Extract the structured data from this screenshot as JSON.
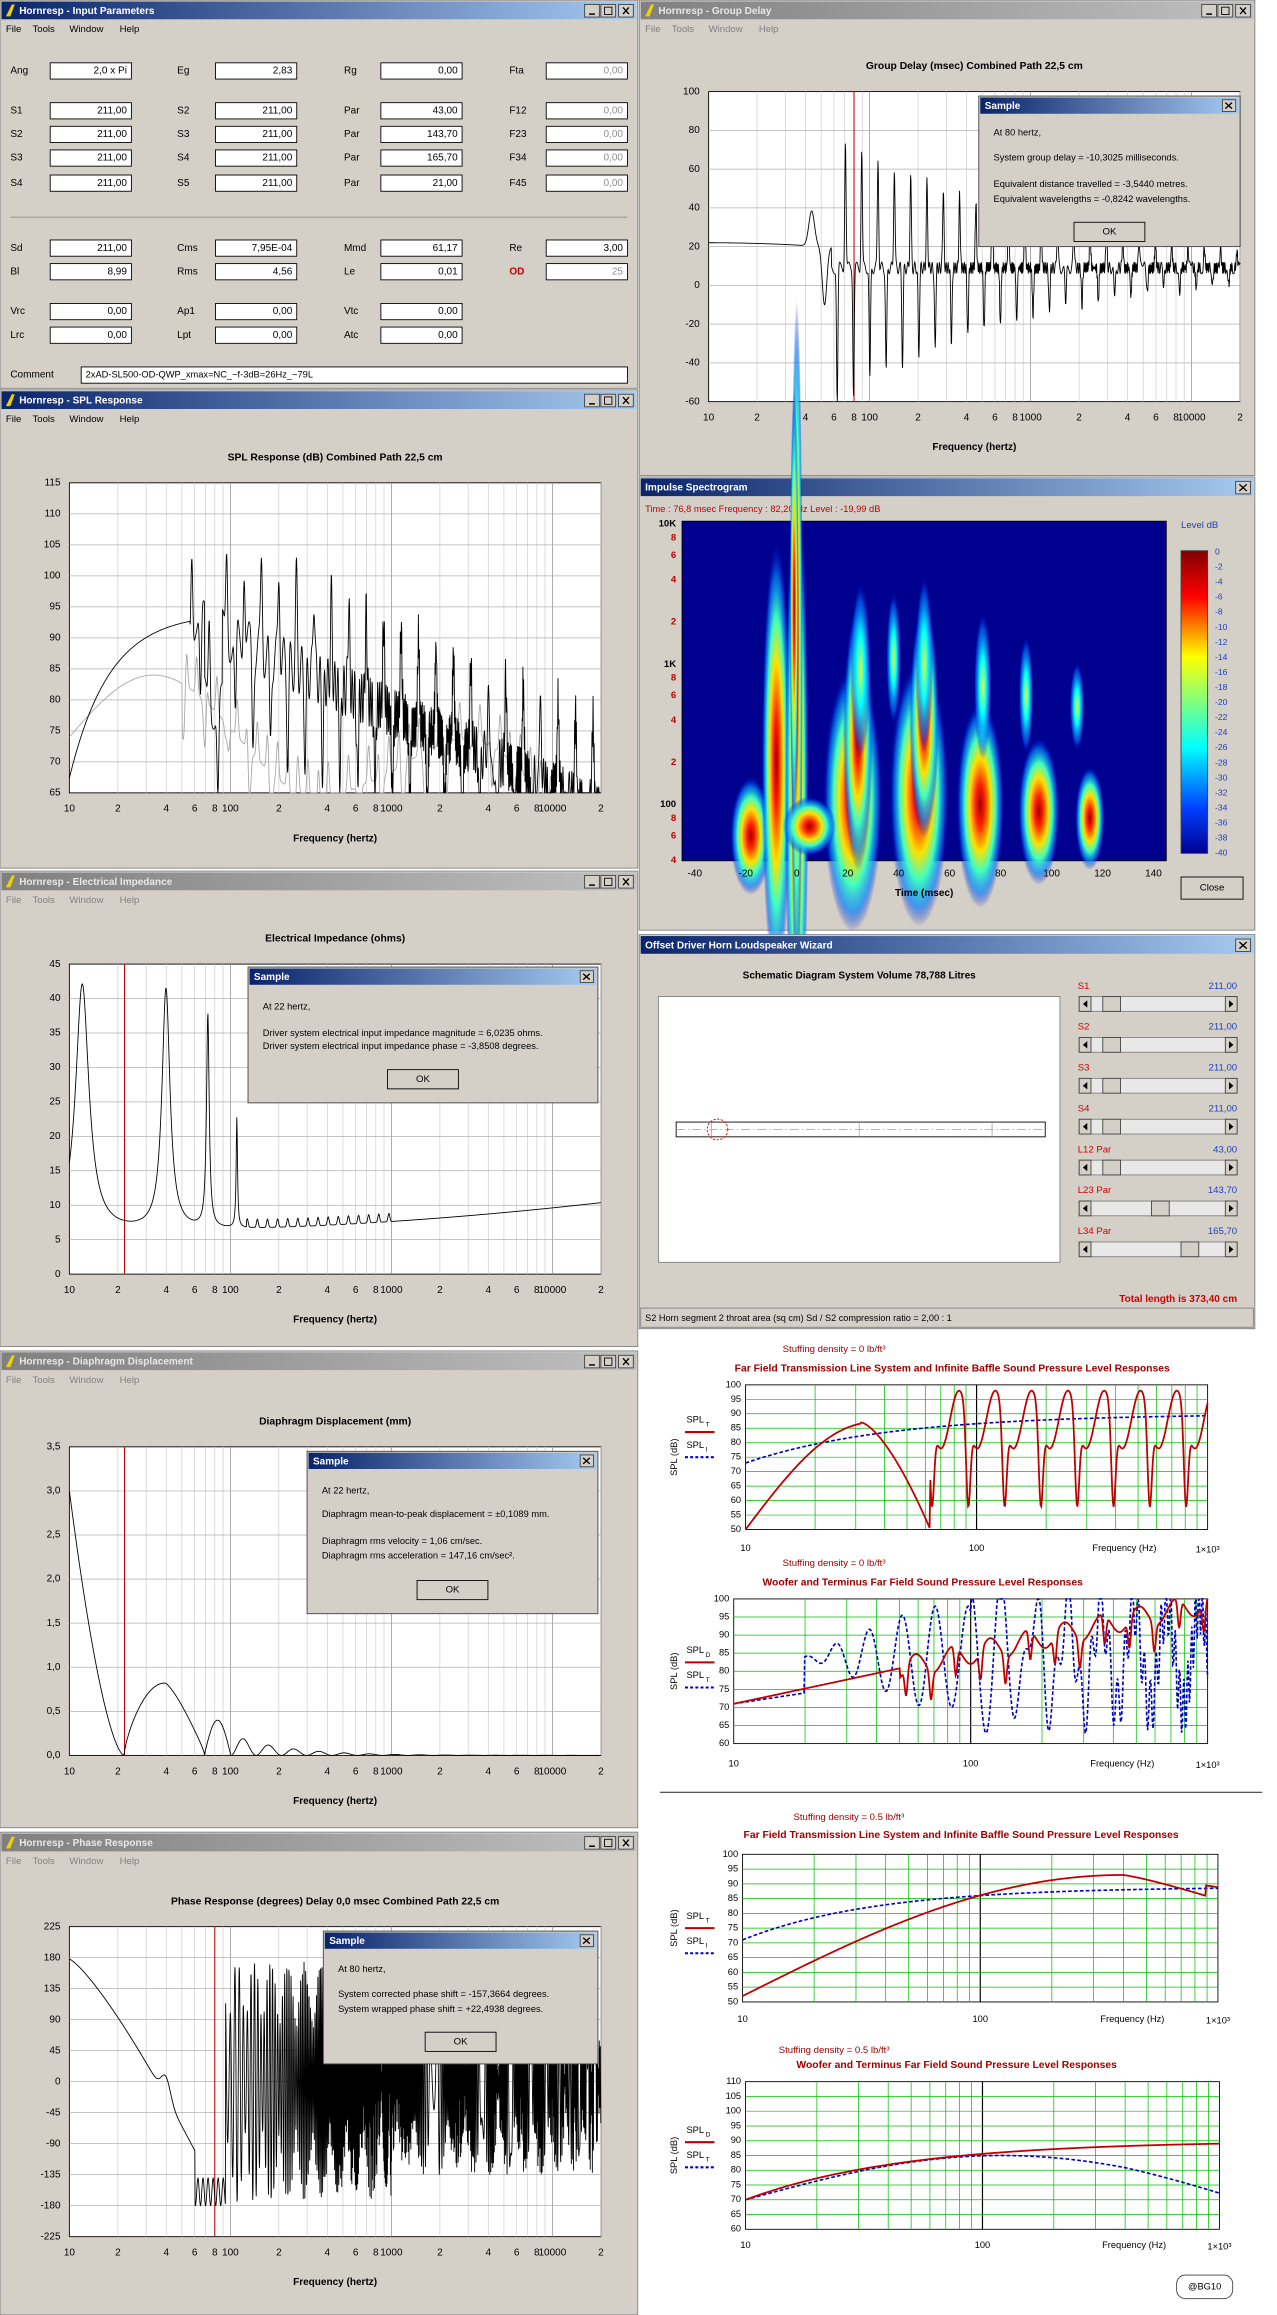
{
  "input_parameters": {
    "title": "Hornresp - Input Parameters",
    "menu": [
      "File",
      "Tools",
      "Window",
      "Help"
    ],
    "rows": [
      [
        [
          "Ang",
          "2,0 x Pi"
        ],
        [
          "Eg",
          "2,83"
        ],
        [
          "Rg",
          "0,00"
        ],
        [
          "Fta",
          "0,00"
        ]
      ],
      [
        [
          "S1",
          "211,00"
        ],
        [
          "S2",
          "211,00"
        ],
        [
          "Par",
          "43,00"
        ],
        [
          "F12",
          "0,00"
        ]
      ],
      [
        [
          "S2",
          "211,00"
        ],
        [
          "S3",
          "211,00"
        ],
        [
          "Par",
          "143,70"
        ],
        [
          "F23",
          "0,00"
        ]
      ],
      [
        [
          "S3",
          "211,00"
        ],
        [
          "S4",
          "211,00"
        ],
        [
          "Par",
          "165,70"
        ],
        [
          "F34",
          "0,00"
        ]
      ],
      [
        [
          "S4",
          "211,00"
        ],
        [
          "S5",
          "211,00"
        ],
        [
          "Par",
          "21,00"
        ],
        [
          "F45",
          "0,00"
        ]
      ],
      [
        [
          "Sd",
          "211,00"
        ],
        [
          "Cms",
          "7,95E-04"
        ],
        [
          "Mmd",
          "61,17"
        ],
        [
          "Re",
          "3,00"
        ]
      ],
      [
        [
          "Bl",
          "8,99"
        ],
        [
          "Rms",
          "4,56"
        ],
        [
          "Le",
          "0,01"
        ],
        [
          "OD",
          "25"
        ]
      ],
      [
        [
          "Vrc",
          "0,00"
        ],
        [
          "Ap1",
          "0,00"
        ],
        [
          "Vtc",
          "0,00"
        ]
      ],
      [
        [
          "Lrc",
          "0,00"
        ],
        [
          "Lpt",
          "0,00"
        ],
        [
          "Atc",
          "0,00"
        ]
      ]
    ],
    "comment_label": "Comment",
    "comment": "2xAD-SL500-OD-QWP_xmax=NC_~f-3dB=26Hz_~79L"
  },
  "group_delay": {
    "title": "Hornresp - Group Delay",
    "menu": [
      "File",
      "Tools",
      "Window",
      "Help"
    ],
    "chart": {
      "title": "Group Delay (msec)   Combined   Path 22,5 cm",
      "yticks": [
        "100",
        "80",
        "60",
        "40",
        "20",
        "0",
        "-20",
        "-40",
        "-60"
      ],
      "xticks": [
        "10",
        "2",
        "4",
        "6",
        "8",
        "100",
        "2",
        "4",
        "6",
        "8",
        "1000",
        "2",
        "4",
        "6",
        "8",
        "10000",
        "2"
      ],
      "xlabel": "Frequency (hertz)"
    },
    "dialog": {
      "title": "Sample",
      "lines": [
        "At 80 hertz,",
        "System group delay = -10,3025 milliseconds.",
        "Equivalent distance travelled = -3,5440 metres.",
        "Equivalent wavelengths = -0,8242 wavelengths."
      ],
      "button": "OK"
    }
  },
  "spl_response": {
    "title": "Hornresp - SPL Response",
    "menu": [
      "File",
      "Tools",
      "Window",
      "Help"
    ],
    "chart": {
      "title": "SPL Response (dB)   Combined   Path 22,5 cm",
      "yticks": [
        "115",
        "110",
        "105",
        "100",
        "95",
        "90",
        "85",
        "80",
        "75",
        "70",
        "65"
      ],
      "xticks": [
        "10",
        "2",
        "4",
        "6",
        "8",
        "100",
        "2",
        "4",
        "6",
        "8",
        "1000",
        "2",
        "4",
        "6",
        "8",
        "10000",
        "2"
      ],
      "xlabel": "Frequency (hertz)"
    }
  },
  "impulse_spectrogram": {
    "title": "Impulse Spectrogram",
    "info": "Time : 76,8 msec     Frequency : 82,20 Hz     Level : -19,99 dB",
    "yticks": [
      "10K",
      "8",
      "6",
      "4",
      "2",
      "1K",
      "8",
      "6",
      "4",
      "2",
      "100",
      "8",
      "6",
      "4"
    ],
    "xticks": [
      "-40",
      "-20",
      "0",
      "20",
      "40",
      "60",
      "80",
      "100",
      "120",
      "140"
    ],
    "xlabel": "Time (msec)",
    "legend_title": "Level   dB",
    "legend_ticks": [
      "0",
      "-2",
      "-4",
      "-6",
      "-8",
      "-10",
      "-12",
      "-14",
      "-16",
      "-18",
      "-20",
      "-22",
      "-24",
      "-26",
      "-28",
      "-30",
      "-32",
      "-34",
      "-36",
      "-38",
      "-40"
    ],
    "button": "Close"
  },
  "electrical_impedance": {
    "title": "Hornresp - Electrical Impedance",
    "menu": [
      "File",
      "Tools",
      "Window",
      "Help"
    ],
    "chart": {
      "title": "Electrical Impedance (ohms)",
      "yticks": [
        "45",
        "40",
        "35",
        "30",
        "25",
        "20",
        "15",
        "10",
        "5",
        "0"
      ],
      "xticks": [
        "10",
        "2",
        "4",
        "6",
        "8",
        "100",
        "2",
        "4",
        "6",
        "8",
        "1000",
        "2",
        "4",
        "6",
        "8",
        "10000",
        "2"
      ],
      "xlabel": "Frequency (hertz)"
    },
    "dialog": {
      "title": "Sample",
      "lines": [
        "At 22 hertz,",
        "Driver system electrical input impedance magnitude = 6,0235 ohms.",
        "Driver system electrical input impedance phase = -3,8508 degrees."
      ],
      "button": "OK"
    }
  },
  "wizard": {
    "title": "Offset Driver Horn Loudspeaker Wizard",
    "heading": "Schematic Diagram    System Volume 78,788 Litres",
    "params": [
      [
        "S1",
        "211,00"
      ],
      [
        "S2",
        "211,00"
      ],
      [
        "S3",
        "211,00"
      ],
      [
        "S4",
        "211,00"
      ],
      [
        "L12  Par",
        "43,00"
      ],
      [
        "L23  Par",
        "143,70"
      ],
      [
        "L34  Par",
        "165,70"
      ]
    ],
    "total": "Total length is 373,40 cm",
    "status": "S2    Horn segment 2 throat area  (sq cm)    Sd / S2 compression ratio = 2,00 : 1"
  },
  "diaphragm_displacement": {
    "title": "Hornresp - Diaphragm Displacement",
    "menu": [
      "File",
      "Tools",
      "Window",
      "Help"
    ],
    "chart": {
      "title": "Diaphragm Displacement (mm)",
      "yticks": [
        "3,5",
        "3,0",
        "2,5",
        "2,0",
        "1,5",
        "1,0",
        "0,5",
        "0,0"
      ],
      "xticks": [
        "10",
        "2",
        "4",
        "6",
        "8",
        "100",
        "2",
        "4",
        "6",
        "8",
        "1000",
        "2",
        "4",
        "6",
        "8",
        "10000",
        "2"
      ],
      "xlabel": "Frequency (hertz)"
    },
    "dialog": {
      "title": "Sample",
      "lines": [
        "At 22 hertz,",
        "Diaphragm mean-to-peak displacement = ±0,1089 mm.",
        "Diaphragm rms velocity = 1,06 cm/sec.",
        "Diaphragm rms acceleration = 147,16 cm/sec²."
      ],
      "button": "OK"
    }
  },
  "phase_response": {
    "title": "Hornresp - Phase Response",
    "menu": [
      "File",
      "Tools",
      "Window",
      "Help"
    ],
    "chart": {
      "title": "Phase Response (degrees)   Delay 0,0 msec   Combined   Path 22,5 cm",
      "yticks": [
        "225",
        "180",
        "135",
        "90",
        "45",
        "0",
        "-45",
        "-90",
        "-135",
        "-180",
        "-225"
      ],
      "xticks": [
        "10",
        "2",
        "4",
        "6",
        "8",
        "100",
        "2",
        "4",
        "6",
        "8",
        "1000",
        "2",
        "4",
        "6",
        "8",
        "10000",
        "2"
      ],
      "xlabel": "Frequency (hertz)"
    },
    "dialog": {
      "title": "Sample",
      "lines": [
        "At 80 hertz,",
        "System corrected phase shift = -157,3664 degrees.",
        "System wrapped phase shift = +22,4938 degrees."
      ],
      "button": "OK"
    }
  },
  "plots": [
    {
      "subtitle": "Stuffing density = 0 lb/ft³",
      "title": "Far Field Transmission Line System and Infinite Baffle Sound Pressure Level Responses",
      "yticks": [
        "100",
        "95",
        "90",
        "85",
        "80",
        "75",
        "70",
        "65",
        "60",
        "55",
        "50"
      ],
      "ylabel": "SPL (dB)",
      "legend": [
        {
          "text": "SPL",
          "sub": "T"
        },
        {
          "text": "SPL",
          "sub": "I"
        }
      ],
      "xticks": [
        "10",
        "100"
      ],
      "xlabel": "Frequency (Hz)",
      "xmax": "1×10³"
    },
    {
      "subtitle": "Stuffing density = 0 lb/ft³",
      "title": "Woofer and Terminus Far Field Sound Pressure Level Responses",
      "yticks": [
        "100",
        "95",
        "90",
        "85",
        "80",
        "75",
        "70",
        "65",
        "60"
      ],
      "ylabel": "SPL (dB)",
      "legend": [
        {
          "text": "SPL",
          "sub": "D"
        },
        {
          "text": "SPL",
          "sub": "T"
        }
      ],
      "xticks": [
        "10",
        "100"
      ],
      "xlabel": "Frequency (Hz)",
      "xmax": "1×10³"
    },
    {
      "subtitle": "Stuffing density = 0.5 lb/ft³",
      "title": "Far Field Transmission Line System and Infinite Baffle Sound Pressure Level Responses",
      "yticks": [
        "100",
        "95",
        "90",
        "85",
        "80",
        "75",
        "70",
        "65",
        "60",
        "55",
        "50"
      ],
      "ylabel": "SPL (dB)",
      "legend": [
        {
          "text": "SPL",
          "sub": "T"
        },
        {
          "text": "SPL",
          "sub": "I"
        }
      ],
      "xticks": [
        "10",
        "100"
      ],
      "xlabel": "Frequency (Hz)",
      "xmax": "1×10³"
    },
    {
      "subtitle": "Stuffing density = 0.5 lb/ft³",
      "title": "Woofer and Terminus Far Field Sound Pressure Level Responses",
      "yticks": [
        "110",
        "105",
        "100",
        "95",
        "90",
        "85",
        "80",
        "75",
        "70",
        "65",
        "60"
      ],
      "ylabel": "SPL (dB)",
      "legend": [
        {
          "text": "SPL",
          "sub": "D"
        },
        {
          "text": "SPL",
          "sub": "T"
        }
      ],
      "xticks": [
        "10",
        "100"
      ],
      "xlabel": "Frequency (Hz)",
      "xmax": "1×10³"
    }
  ],
  "watermark": "@BG10"
}
